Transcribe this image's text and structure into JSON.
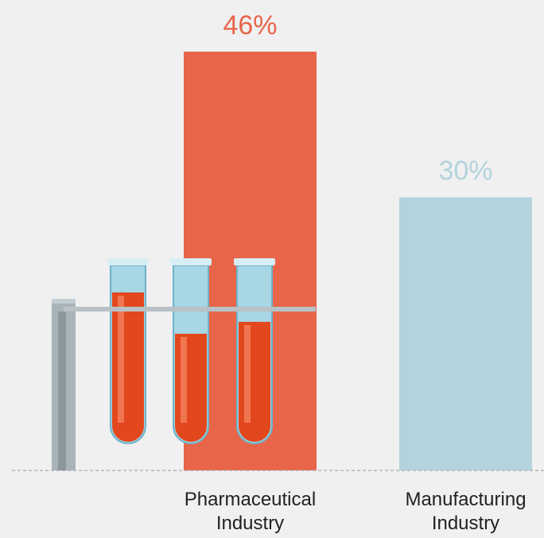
{
  "chart_data": {
    "type": "bar",
    "categories": [
      "Pharmaceutical Industry",
      "Manufacturing Industry"
    ],
    "values": [
      46,
      30
    ],
    "value_labels": [
      "46%",
      "30%"
    ],
    "colors": [
      "#e8654a",
      "#b3d4dc"
    ]
  }
}
